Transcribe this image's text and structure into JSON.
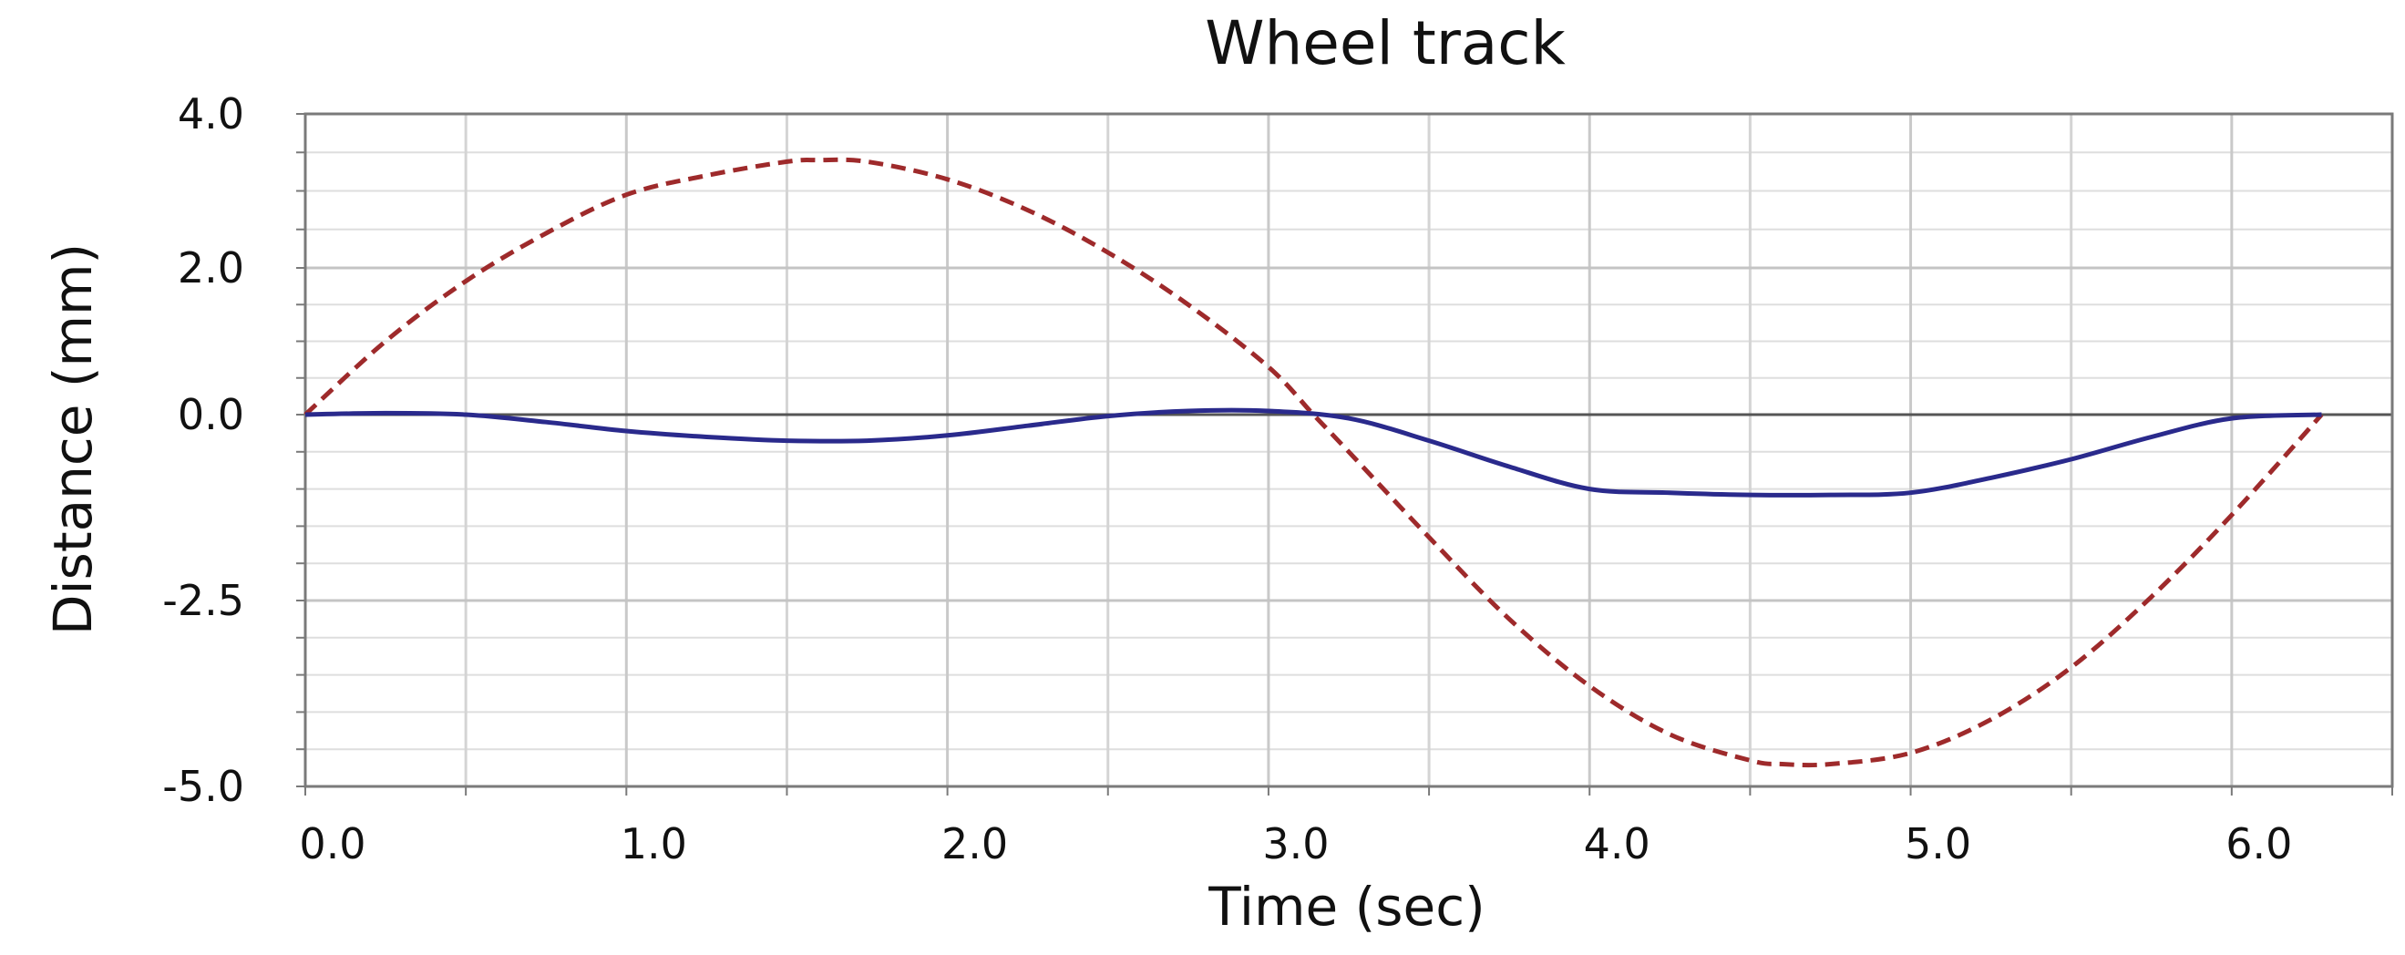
{
  "chart_data": {
    "type": "line",
    "title": "Wheel track",
    "xlabel": "Time (sec)",
    "ylabel": "Distance (mm)",
    "xlim": [
      0,
      6.5
    ],
    "ylim": [
      -5,
      4
    ],
    "x_ticks": [
      {
        "value": 0,
        "label": "0.0"
      },
      {
        "value": 1,
        "label": "1.0"
      },
      {
        "value": 2,
        "label": "2.0"
      },
      {
        "value": 3,
        "label": "3.0"
      },
      {
        "value": 4,
        "label": "4.0"
      },
      {
        "value": 5,
        "label": "5.0"
      },
      {
        "value": 6,
        "label": "6.0"
      }
    ],
    "y_ticks": [
      {
        "value": 4,
        "label": "4.0"
      },
      {
        "value": 2,
        "label": "2.0"
      },
      {
        "value": 0,
        "label": "0.0"
      },
      {
        "value": -2.5,
        "label": "-2.5"
      },
      {
        "value": -5,
        "label": "-5.0"
      }
    ],
    "grid": true,
    "series": [
      {
        "color": "#9e2a2b",
        "line_style": "dashed",
        "x": [
          0,
          0.25,
          0.5,
          0.75,
          1.0,
          1.25,
          1.5,
          1.6,
          1.75,
          2.0,
          2.25,
          2.5,
          2.75,
          3.0,
          3.14,
          3.25,
          3.5,
          3.75,
          4.0,
          4.25,
          4.5,
          4.6,
          4.75,
          5.0,
          5.25,
          5.5,
          5.75,
          6.0,
          6.28
        ],
        "y": [
          0.0,
          1.0,
          1.82,
          2.45,
          2.95,
          3.2,
          3.38,
          3.4,
          3.38,
          3.15,
          2.75,
          2.2,
          1.5,
          0.65,
          0.0,
          -0.5,
          -1.65,
          -2.75,
          -3.65,
          -4.3,
          -4.65,
          -4.7,
          -4.7,
          -4.55,
          -4.1,
          -3.4,
          -2.45,
          -1.35,
          0.0
        ]
      },
      {
        "color": "#2a2a8c",
        "line_style": "solid",
        "x": [
          0,
          0.25,
          0.5,
          0.75,
          1.0,
          1.25,
          1.5,
          1.75,
          2.0,
          2.25,
          2.5,
          2.75,
          3.0,
          3.25,
          3.5,
          3.75,
          4.0,
          4.25,
          4.5,
          4.75,
          5.0,
          5.25,
          5.5,
          5.75,
          6.0,
          6.28
        ],
        "y": [
          0.0,
          0.02,
          0.0,
          -0.1,
          -0.22,
          -0.3,
          -0.35,
          -0.35,
          -0.28,
          -0.15,
          -0.02,
          0.05,
          0.05,
          -0.05,
          -0.35,
          -0.7,
          -1.0,
          -1.05,
          -1.08,
          -1.08,
          -1.05,
          -0.85,
          -0.6,
          -0.3,
          -0.05,
          0.0
        ]
      }
    ]
  }
}
